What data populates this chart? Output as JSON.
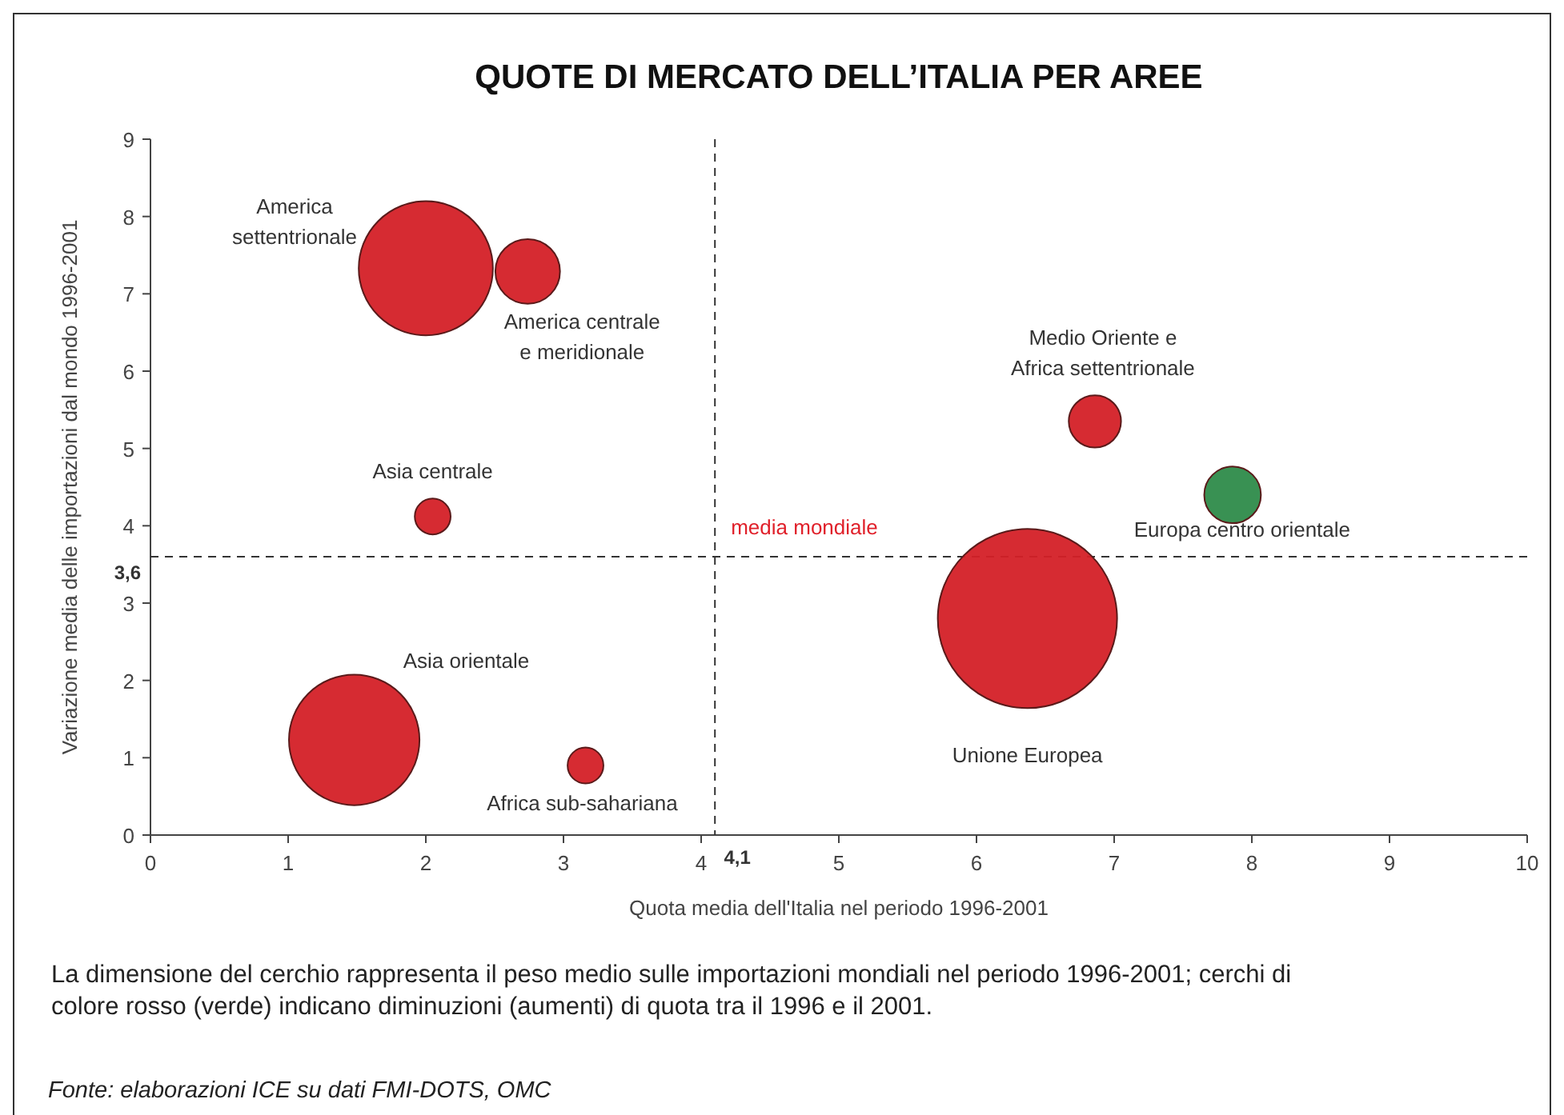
{
  "chart_data": {
    "type": "bubble",
    "title": "QUOTE DI MERCATO DELL’ITALIA PER AREE",
    "xlabel": "Quota media dell'Italia nel periodo 1996-2001",
    "ylabel": "Variazione media delle importazioni dal mondo 1996-2001",
    "xlim": [
      0,
      10
    ],
    "xticks": [
      0,
      1,
      2,
      3,
      4,
      5,
      6,
      7,
      8,
      9,
      10
    ],
    "ylim": [
      0,
      9
    ],
    "yticks": [
      0,
      1,
      2,
      3,
      4,
      5,
      6,
      7,
      8,
      9
    ],
    "grid": false,
    "series": [
      {
        "name": "America\nsettentrionale",
        "color": "#d42027",
        "x": [
          2.0
        ],
        "values": [
          7.33
        ],
        "sizes": [
          0.56
        ]
      },
      {
        "name": "America centrale\ne meridionale",
        "color": "#d42027",
        "x": [
          2.74
        ],
        "values": [
          7.29
        ],
        "sizes": [
          0.13
        ]
      },
      {
        "name": "Asia centrale",
        "color": "#d42027",
        "x": [
          2.05
        ],
        "values": [
          4.12
        ],
        "sizes": [
          0.04
        ]
      },
      {
        "name": "Asia orientale",
        "color": "#d42027",
        "x": [
          1.48
        ],
        "values": [
          1.23
        ],
        "sizes": [
          0.53
        ]
      },
      {
        "name": "Africa sub-sahariana",
        "color": "#d42027",
        "x": [
          3.16
        ],
        "values": [
          0.9
        ],
        "sizes": [
          0.04
        ]
      },
      {
        "name": "Medio Oriente e\nAfrica settentrionale",
        "color": "#d42027",
        "x": [
          6.86
        ],
        "values": [
          5.35
        ],
        "sizes": [
          0.085
        ]
      },
      {
        "name": "Europa centro orientale",
        "color": "#2e8b4a",
        "x": [
          7.86
        ],
        "values": [
          4.4
        ],
        "sizes": [
          0.1
        ]
      },
      {
        "name": "Unione Europea",
        "color": "#d42027",
        "x": [
          6.37
        ],
        "values": [
          2.8
        ],
        "sizes": [
          1
        ]
      }
    ],
    "ref_lines": [
      {
        "axis": "y",
        "value": 3.6,
        "label": "3,6",
        "line_style": "dashed"
      },
      {
        "axis": "x",
        "value": 4.1,
        "label": "4,1",
        "line_style": "dashed"
      }
    ],
    "annotations": [
      {
        "text": "media mondiale",
        "x": 4.1,
        "y": 3.6
      },
      "La dimensione del cerchio rappresenta il peso medio sulle importazioni mondiali nel periodo 1996-2001; cerchi di colore rosso (verde) indicano diminuzioni (aumenti) di quota tra il 1996 e il 2001.",
      "Fonte: elaborazioni ICE su dati FMI-DOTS, OMC"
    ]
  }
}
